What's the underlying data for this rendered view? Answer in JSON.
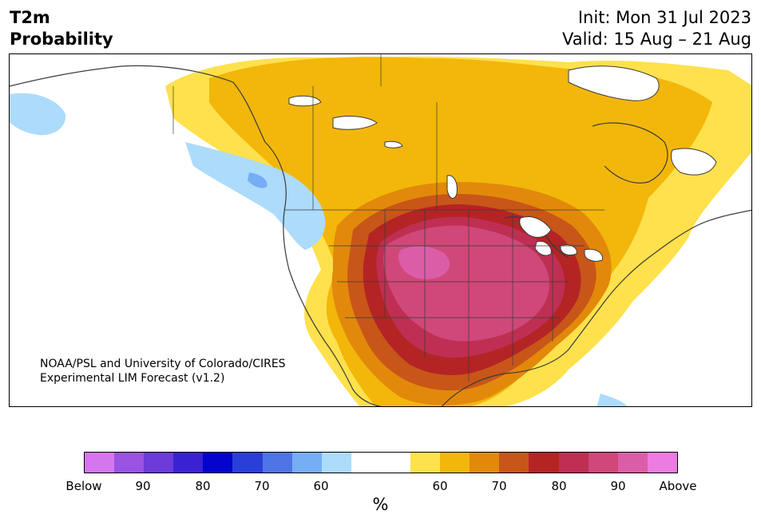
{
  "title": {
    "left_line1": "T2m",
    "left_line2": "Probability",
    "right_line1": "Init: Mon 31 Jul 2023",
    "right_line2": "Valid: 15 Aug – 21 Aug"
  },
  "credit": {
    "line1": "NOAA/PSL and University of Colorado/CIRES",
    "line2": "Experimental LIM Forecast (v1.2)"
  },
  "colorbar": {
    "colors": [
      "#d676ee",
      "#9a53e2",
      "#6d3bd9",
      "#3a22d2",
      "#0404cc",
      "#2a3ed8",
      "#4f74e8",
      "#75aef5",
      "#acdbfc",
      "#ffffff",
      "#ffffff",
      "#fee14c",
      "#f2b70a",
      "#e2890b",
      "#c85618",
      "#b42424",
      "#be2f53",
      "#cf4879",
      "#dc5da7",
      "#ec7ce0"
    ],
    "tick_labels": [
      "Below",
      "90",
      "80",
      "70",
      "60",
      "60",
      "70",
      "80",
      "90",
      "Above"
    ],
    "units": "%"
  },
  "map": {
    "palette": {
      "land_outline": "#3a3a3a",
      "cold_light": "#acdbfc",
      "cold_medium": "#75aef5",
      "warm_60": "#fee14c",
      "warm_65": "#f2b70a",
      "warm_70": "#e2890b",
      "warm_75": "#c85618",
      "warm_80": "#b42424",
      "warm_85": "#be2f53",
      "warm_90": "#cf4879",
      "warm_95": "#dc5da7"
    }
  }
}
